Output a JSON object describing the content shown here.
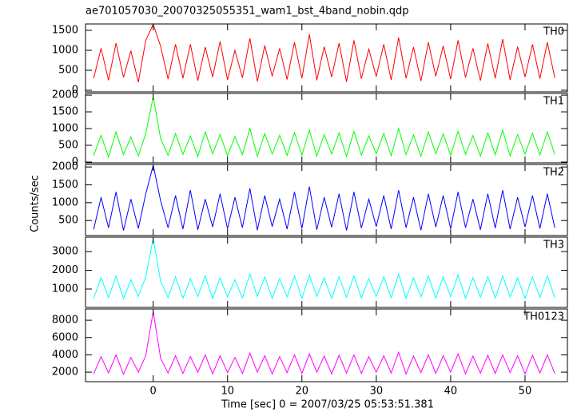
{
  "chart_data": [
    {
      "type": "line",
      "title": "ae701057030_20070325055351_wam1_bst_4band_nobin.qdp",
      "x": [
        -8,
        -7,
        -6,
        -5,
        -4,
        -3,
        -2,
        -1,
        0,
        1,
        2,
        3,
        4,
        5,
        6,
        7,
        8,
        9,
        10,
        11,
        12,
        13,
        14,
        15,
        16,
        17,
        18,
        19,
        20,
        21,
        22,
        23,
        24,
        25,
        26,
        27,
        28,
        29,
        30,
        31,
        32,
        33,
        34,
        35,
        36,
        37,
        38,
        39,
        40,
        41,
        42,
        43,
        44,
        45,
        46,
        47,
        48,
        49,
        50,
        51,
        52,
        53,
        54
      ],
      "series": [
        {
          "name": "TH0",
          "color": "#ff0000",
          "values": [
            300,
            1050,
            250,
            1180,
            320,
            990,
            200,
            1250,
            1650,
            1100,
            280,
            1150,
            300,
            1150,
            240,
            1080,
            330,
            1220,
            260,
            1000,
            310,
            1300,
            220,
            1120,
            350,
            1050,
            270,
            1200,
            300,
            1400,
            250,
            1090,
            330,
            1180,
            210,
            1250,
            290,
            1030,
            340,
            1150,
            260,
            1320,
            300,
            1080,
            230,
            1200,
            350,
            1110,
            280,
            1250,
            320,
            1050,
            240,
            1170,
            300,
            1280,
            260,
            1090,
            330,
            1150,
            290,
            1200,
            310
          ]
        }
      ],
      "xlim": [
        -9.1,
        55.7
      ],
      "ylim": [
        -40,
        1660
      ],
      "yticks": [
        0,
        500,
        1000,
        1500
      ]
    },
    {
      "type": "line",
      "x": [
        -8,
        -7,
        -6,
        -5,
        -4,
        -3,
        -2,
        -1,
        0,
        1,
        2,
        3,
        4,
        5,
        6,
        7,
        8,
        9,
        10,
        11,
        12,
        13,
        14,
        15,
        16,
        17,
        18,
        19,
        20,
        21,
        22,
        23,
        24,
        25,
        26,
        27,
        28,
        29,
        30,
        31,
        32,
        33,
        34,
        35,
        36,
        37,
        38,
        39,
        40,
        41,
        42,
        43,
        44,
        45,
        46,
        47,
        48,
        49,
        50,
        51,
        52,
        53,
        54
      ],
      "series": [
        {
          "name": "TH1",
          "color": "#00ff00",
          "values": [
            200,
            800,
            150,
            900,
            220,
            750,
            180,
            850,
            1950,
            700,
            200,
            850,
            230,
            780,
            160,
            900,
            250,
            820,
            190,
            760,
            220,
            1000,
            170,
            850,
            240,
            800,
            200,
            880,
            210,
            950,
            180,
            820,
            240,
            870,
            160,
            920,
            210,
            780,
            250,
            860,
            190,
            1000,
            220,
            810,
            170,
            900,
            250,
            840,
            200,
            920,
            230,
            790,
            180,
            870,
            220,
            950,
            190,
            820,
            240,
            860,
            210,
            900,
            230
          ]
        }
      ],
      "xlim": [
        -9.1,
        55.7
      ],
      "ylim": [
        -25,
        2050
      ],
      "yticks": [
        0,
        500,
        1000,
        1500,
        2000
      ]
    },
    {
      "type": "line",
      "ylabel": "Counts/sec",
      "x": [
        -8,
        -7,
        -6,
        -5,
        -4,
        -3,
        -2,
        -1,
        0,
        1,
        2,
        3,
        4,
        5,
        6,
        7,
        8,
        9,
        10,
        11,
        12,
        13,
        14,
        15,
        16,
        17,
        18,
        19,
        20,
        21,
        22,
        23,
        24,
        25,
        26,
        27,
        28,
        29,
        30,
        31,
        32,
        33,
        34,
        35,
        36,
        37,
        38,
        39,
        40,
        41,
        42,
        43,
        44,
        45,
        46,
        47,
        48,
        49,
        50,
        51,
        52,
        53,
        54
      ],
      "series": [
        {
          "name": "TH2",
          "color": "#0000ff",
          "values": [
            250,
            1150,
            300,
            1300,
            220,
            1100,
            280,
            1250,
            2050,
            1050,
            300,
            1200,
            260,
            1350,
            240,
            1100,
            320,
            1250,
            270,
            1150,
            300,
            1400,
            230,
            1200,
            330,
            1100,
            260,
            1300,
            280,
            1450,
            240,
            1150,
            310,
            1250,
            220,
            1300,
            290,
            1100,
            330,
            1200,
            260,
            1350,
            300,
            1150,
            230,
            1250,
            320,
            1200,
            270,
            1300,
            300,
            1100,
            240,
            1250,
            290,
            1350,
            260,
            1150,
            320,
            1200,
            280,
            1250,
            300
          ]
        }
      ],
      "xlim": [
        -9.1,
        55.7
      ],
      "ylim": [
        80,
        2070
      ],
      "yticks": [
        500,
        1000,
        1500,
        2000
      ]
    },
    {
      "type": "line",
      "x": [
        -8,
        -7,
        -6,
        -5,
        -4,
        -3,
        -2,
        -1,
        0,
        1,
        2,
        3,
        4,
        5,
        6,
        7,
        8,
        9,
        10,
        11,
        12,
        13,
        14,
        15,
        16,
        17,
        18,
        19,
        20,
        21,
        22,
        23,
        24,
        25,
        26,
        27,
        28,
        29,
        30,
        31,
        32,
        33,
        34,
        35,
        36,
        37,
        38,
        39,
        40,
        41,
        42,
        43,
        44,
        45,
        46,
        47,
        48,
        49,
        50,
        51,
        52,
        53,
        54
      ],
      "series": [
        {
          "name": "TH3",
          "color": "#00ffff",
          "values": [
            500,
            1600,
            550,
            1700,
            480,
            1500,
            600,
            1650,
            3700,
            1400,
            550,
            1650,
            520,
            1550,
            600,
            1700,
            500,
            1600,
            580,
            1500,
            520,
            1800,
            600,
            1650,
            500,
            1550,
            580,
            1700,
            520,
            1750,
            600,
            1600,
            500,
            1650,
            560,
            1700,
            520,
            1550,
            600,
            1650,
            540,
            1800,
            500,
            1600,
            580,
            1700,
            520,
            1650,
            600,
            1750,
            500,
            1600,
            560,
            1650,
            520,
            1700,
            580,
            1600,
            500,
            1650,
            560,
            1700,
            540
          ]
        }
      ],
      "xlim": [
        -9.1,
        55.7
      ],
      "ylim": [
        20,
        3770
      ],
      "yticks": [
        1000,
        2000,
        3000
      ]
    },
    {
      "type": "line",
      "xlabel": "Time [sec] 0 = 2007/03/25 05:53:51.381",
      "x": [
        -8,
        -7,
        -6,
        -5,
        -4,
        -3,
        -2,
        -1,
        0,
        1,
        2,
        3,
        4,
        5,
        6,
        7,
        8,
        9,
        10,
        11,
        12,
        13,
        14,
        15,
        16,
        17,
        18,
        19,
        20,
        21,
        22,
        23,
        24,
        25,
        26,
        27,
        28,
        29,
        30,
        31,
        32,
        33,
        34,
        35,
        36,
        37,
        38,
        39,
        40,
        41,
        42,
        43,
        44,
        45,
        46,
        47,
        48,
        49,
        50,
        51,
        52,
        53,
        54
      ],
      "series": [
        {
          "name": "TH0123",
          "color": "#ff00ff",
          "values": [
            1800,
            3800,
            1900,
            4000,
            1750,
            3700,
            2000,
            3900,
            9000,
            3600,
            1900,
            3900,
            1850,
            3800,
            2000,
            4000,
            1800,
            3900,
            1950,
            3700,
            1850,
            4200,
            2000,
            3900,
            1800,
            3800,
            1950,
            4000,
            1850,
            4100,
            2000,
            3850,
            1800,
            3950,
            1900,
            4000,
            1850,
            3800,
            2000,
            3900,
            1900,
            4300,
            1800,
            3850,
            1950,
            4000,
            1850,
            3900,
            2000,
            4100,
            1800,
            3850,
            1900,
            3950,
            1850,
            4000,
            1950,
            3900,
            1800,
            3950,
            1900,
            4000,
            1850
          ]
        }
      ],
      "xlim": [
        -9.1,
        55.7
      ],
      "ylim": [
        900,
        9300
      ],
      "yticks": [
        2000,
        4000,
        6000,
        8000
      ],
      "xticks": [
        0,
        10,
        20,
        30,
        40,
        50
      ]
    }
  ]
}
